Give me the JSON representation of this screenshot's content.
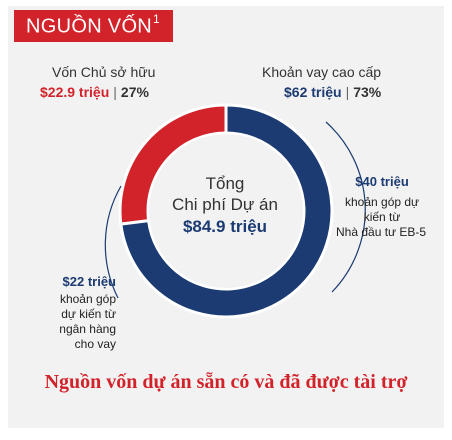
{
  "header": {
    "title": "NGUỒN VỐN",
    "superscript": "1"
  },
  "chart_data": {
    "type": "pie",
    "variant": "donut",
    "center": {
      "line1": "Tổng",
      "line2": "Chi phí Dự án",
      "total": "$84.9 triệu"
    },
    "slices": [
      {
        "name": "Vốn Chủ sở hữu",
        "value_label": "$22.9 triệu",
        "value": 22.9,
        "percent": "27%",
        "color": "#d2232a"
      },
      {
        "name": "Khoản vay cao cấp",
        "value_label": "$62 triệu",
        "value": 62,
        "percent": "73%",
        "color": "#1c3b72"
      }
    ],
    "sub_annotations": {
      "eb5": {
        "amount": "$40 triệu",
        "lines": [
          "khoản góp dự",
          "kiến từ",
          "Nhà đầu tư EB-5"
        ]
      },
      "bank": {
        "amount": "$22 triệu",
        "lines": [
          "khoản góp",
          "dự kiến từ",
          "ngân hàng",
          "cho vay"
        ]
      }
    }
  },
  "footer": {
    "text": "Nguồn vốn dự án sẵn có và đã được tài trợ"
  }
}
